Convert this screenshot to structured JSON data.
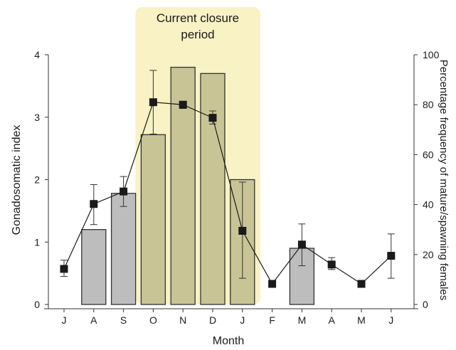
{
  "chart_data": {
    "type": "bar",
    "categories": [
      "J",
      "A",
      "S",
      "O",
      "N",
      "D",
      "J",
      "F",
      "M",
      "A",
      "M",
      "J"
    ],
    "xlabel": "Month",
    "ylabel": "Gonadosomatic index",
    "ylabel_right": "Percentage frequency of mature/spawning females",
    "ylim": [
      0,
      4
    ],
    "ylim_right": [
      0,
      100
    ],
    "yticks": [
      "0",
      "1",
      "2",
      "3",
      "4"
    ],
    "yticks_right": [
      "0",
      "20",
      "40",
      "60",
      "80",
      "100"
    ],
    "annotation": {
      "line1": "Current closure",
      "line2": "period",
      "start_category": 3,
      "end_category": 6
    },
    "bars": {
      "axis": "right",
      "values": [
        null,
        30,
        44.5,
        68,
        95,
        92.5,
        50,
        null,
        22.5,
        null,
        null,
        null
      ],
      "in_closure": [
        false,
        false,
        false,
        true,
        true,
        true,
        true,
        false,
        false,
        false,
        false,
        false
      ]
    },
    "line": {
      "axis": "left",
      "values": [
        0.57,
        1.61,
        1.81,
        3.24,
        3.2,
        2.99,
        1.18,
        0.33,
        0.96,
        0.64,
        0.33,
        0.78
      ],
      "err_low": [
        0.45,
        1.28,
        1.57,
        2.73,
        3.14,
        2.89,
        0.42,
        null,
        0.62,
        0.56,
        null,
        0.42
      ],
      "err_high": [
        0.71,
        1.92,
        2.05,
        3.75,
        3.25,
        3.1,
        1.96,
        null,
        1.29,
        0.75,
        null,
        1.13
      ]
    },
    "grid": false,
    "legend": "none",
    "colors": {
      "closure_band": "#f8f2c4",
      "bar_closure": "#c8c496",
      "bar_default": "#bdbdbd",
      "bar_stroke": "#333333",
      "line": "#1a1a1a"
    }
  }
}
